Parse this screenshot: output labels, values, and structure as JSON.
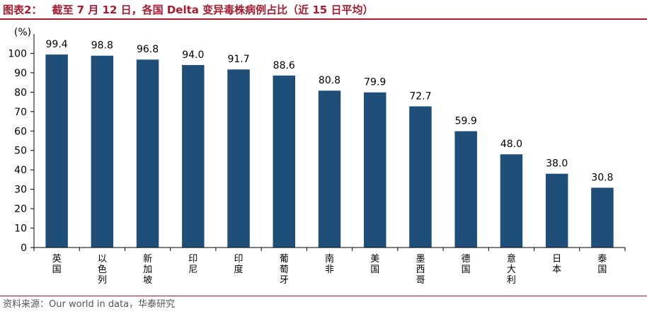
{
  "header": {
    "figure_label": "图表2：",
    "title": "截至 7 月 12 日，各国 Delta 变异毒株病例占比（近 15 日平均）"
  },
  "chart_data": {
    "type": "bar",
    "unit_label": "(%)",
    "categories": [
      "英国",
      "以色列",
      "新加坡",
      "印尼",
      "印度",
      "葡萄牙",
      "南非",
      "美国",
      "墨西哥",
      "德国",
      "意大利",
      "日本",
      "泰国"
    ],
    "values": [
      99.4,
      98.8,
      96.8,
      94.0,
      91.7,
      88.6,
      80.8,
      79.9,
      72.7,
      59.9,
      48.0,
      38.0,
      30.8
    ],
    "value_labels": [
      "99.4",
      "98.8",
      "96.8",
      "94.0",
      "91.7",
      "88.6",
      "80.8",
      "79.9",
      "72.7",
      "59.9",
      "48.0",
      "38.0",
      "30.8"
    ],
    "ylim": [
      0,
      110
    ],
    "yticks": [
      0,
      10,
      20,
      30,
      40,
      50,
      60,
      70,
      80,
      90,
      100
    ],
    "grid": false,
    "bar_color": "#1f4e79",
    "axis_color": "#000000"
  },
  "footer": {
    "source": "资料来源：Our world in data，华泰研究"
  },
  "colors": {
    "accent": "#a51c30"
  }
}
